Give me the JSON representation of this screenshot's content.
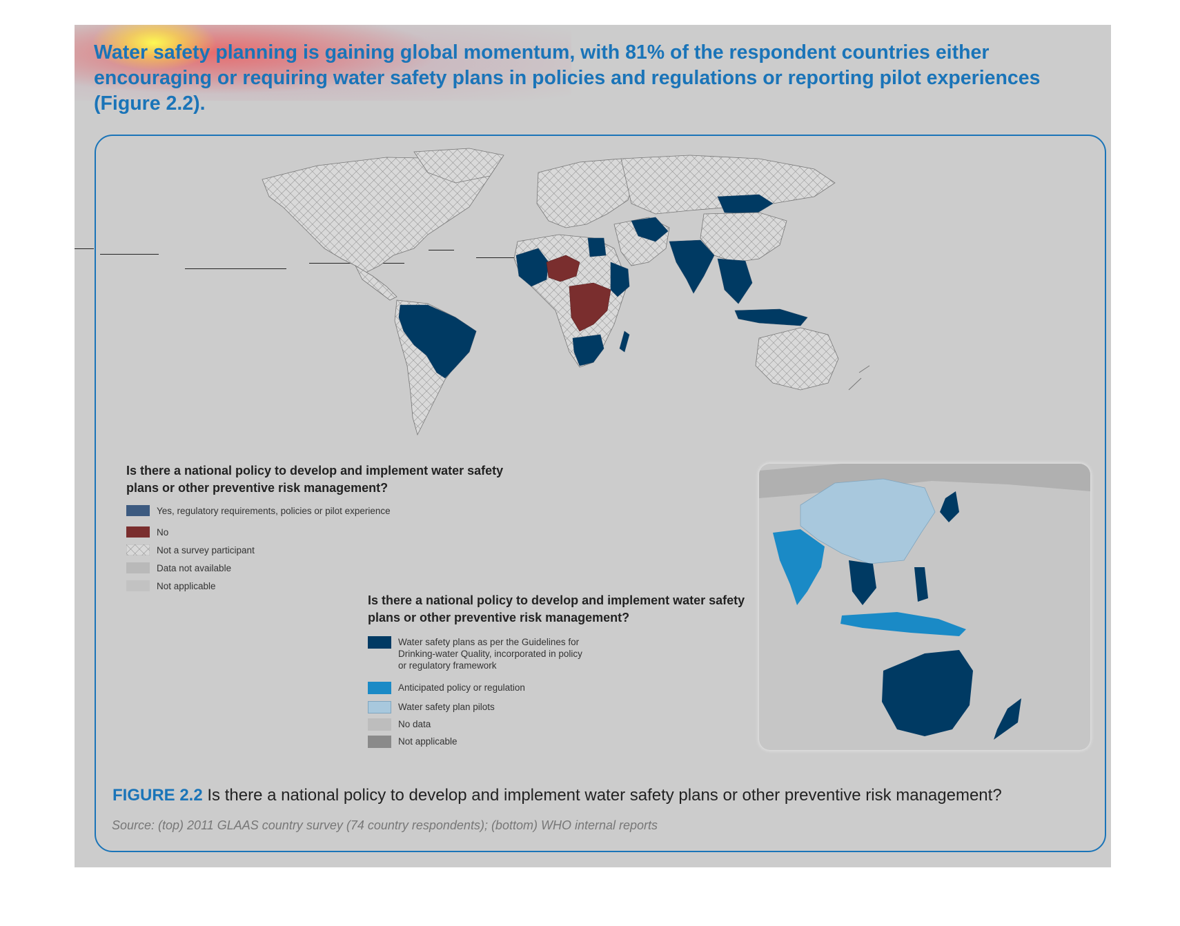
{
  "headline": "Water safety planning is gaining global momentum, with 81% of the respondent countries either encouraging or requiring water safety plans in policies and regulations or reporting pilot experiences (Figure 2.2).",
  "legend_top": {
    "title": "Is there a national policy to develop and implement water safety plans or other preventive risk management?",
    "items": [
      {
        "label": "Yes, regulatory requirements, policies or pilot experience",
        "color": "#3c5a80"
      },
      {
        "label": "No",
        "color": "#7a2e2e"
      },
      {
        "label": "Not a survey participant",
        "color": "hatched"
      },
      {
        "label": "Data not available",
        "color": "#b9b9b9"
      },
      {
        "label": "Not applicable",
        "color": "#c2c2c2"
      }
    ]
  },
  "legend_bottom": {
    "title": "Is there a national policy to develop and implement water safety plans or other preventive risk management?",
    "items": [
      {
        "label": "Water safety plans as per the Guidelines for Drinking-water Quality, incorporated in policy or regulatory framework",
        "color": "#003a63"
      },
      {
        "label": "Anticipated policy or regulation",
        "color": "#1a8ac6"
      },
      {
        "label": "Water safety plan pilots",
        "color": "#a8c8dd"
      },
      {
        "label": "No data",
        "color": "#bdbdbd"
      },
      {
        "label": "Not applicable",
        "color": "#8a8a8a"
      }
    ]
  },
  "figure": {
    "label": "FIGURE 2.2",
    "caption": " Is there a national policy to develop and implement water safety plans or other preventive risk management?",
    "source": "Source: (top) 2011 GLAAS country survey (74 country respondents); (bottom) WHO internal reports"
  },
  "colors": {
    "accent": "#1a74b8",
    "yes": "#003a63",
    "no": "#7a2e2e",
    "anticipated": "#1a8ac6",
    "pilots": "#a8c8dd"
  }
}
